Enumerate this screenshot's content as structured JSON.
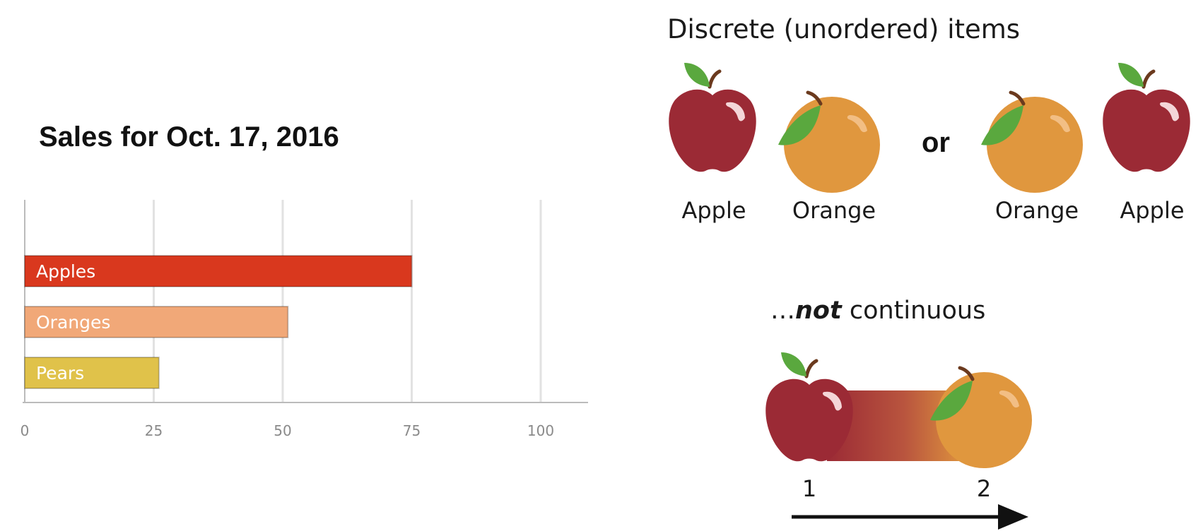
{
  "chart_data": {
    "type": "bar",
    "orientation": "horizontal",
    "title": "Sales for Oct. 17, 2016",
    "categories": [
      "Apples",
      "Oranges",
      "Pears"
    ],
    "values": [
      75,
      51,
      26
    ],
    "bar_colors": [
      "#d9381e",
      "#f1a878",
      "#e0c24a"
    ],
    "bar_labels_inside": true,
    "xlim": [
      0,
      100
    ],
    "x_ticks": [
      0,
      25,
      50,
      75,
      100
    ],
    "x_tick_labels": [
      "0",
      "25",
      "50",
      "75",
      "100"
    ],
    "grid": true,
    "legend": "none"
  },
  "diagram": {
    "heading": "Discrete (unordered) items",
    "left_pair": [
      "Apple",
      "Orange"
    ],
    "connector": "or",
    "right_pair": [
      "Orange",
      "Apple"
    ],
    "not_prefix": "…",
    "not_emphasis": "not",
    "not_suffix": " continuous",
    "continuum_labels": [
      "1",
      "2"
    ]
  },
  "colors": {
    "apple_red": "#9b2a35",
    "apple_highlight": "#f4d6d8",
    "orange_fill": "#e0973e",
    "orange_highlight": "#f2be84",
    "leaf_green": "#5aa83e",
    "stem_brown": "#6b3a1e",
    "grid_line": "#e2e2e2",
    "axis_line": "#bbbbbb"
  },
  "icons": {
    "fruit_apple": "apple-icon",
    "fruit_orange": "orange-icon",
    "arrow": "arrow-right-icon"
  }
}
